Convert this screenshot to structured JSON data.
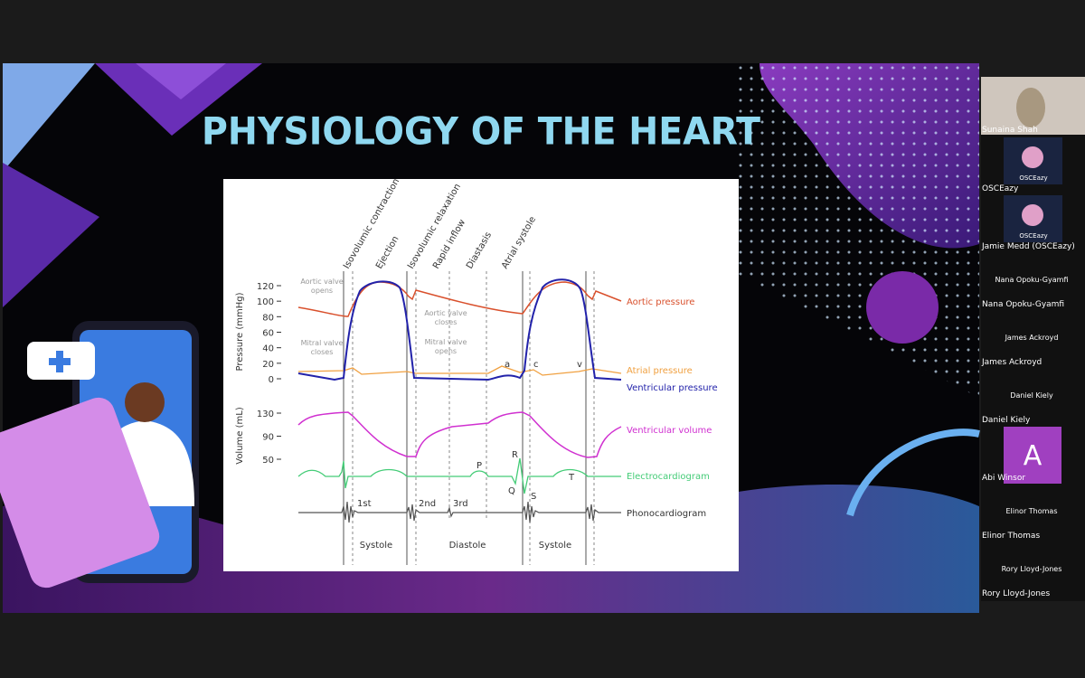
{
  "slide": {
    "title": "PHYSIOLOGY OF THE HEART",
    "diagram": {
      "phases": [
        "Isovolumic contraction",
        "Ejection",
        "Isovolumic relaxation",
        "Rapid inflow",
        "Diastasis",
        "Atrial systole"
      ],
      "pressure_axis_label": "Pressure (mmHg)",
      "pressure_ticks": [
        120,
        100,
        80,
        60,
        40,
        20,
        0
      ],
      "volume_axis_label": "Volume (mL)",
      "volume_ticks": [
        130,
        90,
        50
      ],
      "annotations": [
        {
          "lines": [
            "Aortic valve",
            "opens"
          ]
        },
        {
          "lines": [
            "Aortic valve",
            "closes"
          ]
        },
        {
          "lines": [
            "Mitral valve",
            "closes"
          ]
        },
        {
          "lines": [
            "Mitral valve",
            "opens"
          ]
        }
      ],
      "curve_labels": [
        "Aortic pressure",
        "Atrial pressure",
        "Ventricular pressure",
        "Ventricular volume",
        "Electrocardiogram",
        "Phonocardiogram"
      ],
      "wave_labels": [
        "a",
        "c",
        "v",
        "P",
        "R",
        "Q",
        "S",
        "T"
      ],
      "heart_sounds": [
        "1st",
        "2nd",
        "3rd"
      ],
      "cycle_labels": [
        "Systole",
        "Diastole",
        "Systole"
      ]
    }
  },
  "participants": [
    {
      "name": "Sunaina Shah"
    },
    {
      "name": "OSCEazy",
      "logo_text": "OSCEazy"
    },
    {
      "name": "Jamie Medd (OSCEazy)",
      "logo_text": "OSCEazy"
    },
    {
      "name": "Nana Opoku-Gyamfi",
      "tile_name": "Nana Opoku-Gyamfi"
    },
    {
      "name": "James Ackroyd",
      "tile_name": "James Ackroyd"
    },
    {
      "name": "Daniel Kiely",
      "tile_name": "Daniel Kiely"
    },
    {
      "name": "Abi Winsor",
      "avatar_letter": "A"
    },
    {
      "name": "Elinor Thomas",
      "tile_name": "Elinor Thomas"
    },
    {
      "name": "Rory Lloyd-Jones",
      "tile_name": "Rory Lloyd-Jones"
    }
  ]
}
